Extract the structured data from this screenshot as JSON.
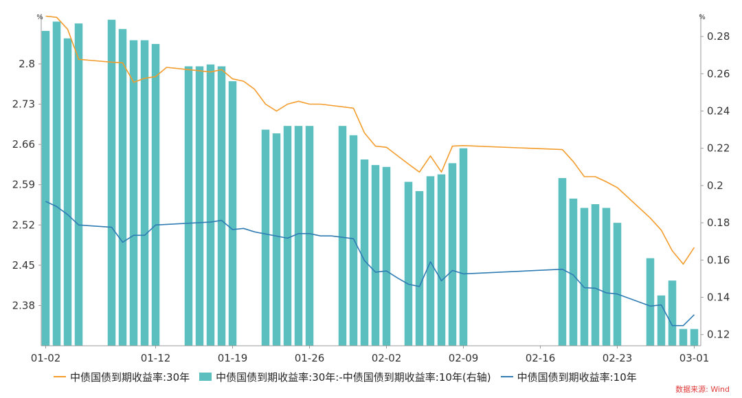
{
  "chart_data": {
    "type": "bar+line",
    "left_unit": "%",
    "right_unit": "%",
    "y_left_ticks": [
      "2.8",
      "2.73",
      "2.66",
      "2.59",
      "2.52",
      "2.45",
      "2.38"
    ],
    "y_left_values": [
      2.8,
      2.73,
      2.66,
      2.59,
      2.52,
      2.45,
      2.38
    ],
    "ylim_left": [
      2.31,
      2.88
    ],
    "y_right_ticks": [
      "0.28",
      "0.26",
      "0.24",
      "0.22",
      "0.2",
      "0.18",
      "0.16",
      "0.14",
      "0.12"
    ],
    "y_right_values": [
      0.28,
      0.26,
      0.24,
      0.22,
      0.2,
      0.18,
      0.16,
      0.14,
      0.12
    ],
    "ylim_right": [
      0.114,
      0.29
    ],
    "x_ticks": [
      {
        "label": "01-02",
        "i": 0
      },
      {
        "label": "01-12",
        "i": 10
      },
      {
        "label": "01-19",
        "i": 17
      },
      {
        "label": "01-26",
        "i": 24
      },
      {
        "label": "02-02",
        "i": 31
      },
      {
        "label": "02-09",
        "i": 38
      },
      {
        "label": "02-16",
        "i": 45
      },
      {
        "label": "02-23",
        "i": 52
      },
      {
        "label": "03-01",
        "i": 59
      }
    ],
    "n_slots": 60,
    "series": [
      {
        "name": "中债国债到期收益率:30年",
        "kind": "line",
        "axis": "left",
        "color": "#f39c2b",
        "points": [
          [
            0,
            2.883
          ],
          [
            1,
            2.881
          ],
          [
            2,
            2.86
          ],
          [
            3,
            2.808
          ],
          [
            6,
            2.803
          ],
          [
            7,
            2.802
          ],
          [
            8,
            2.768
          ],
          [
            9,
            2.775
          ],
          [
            10,
            2.778
          ],
          [
            11,
            2.794
          ],
          [
            15,
            2.786
          ],
          [
            16,
            2.79
          ],
          [
            17,
            2.774
          ],
          [
            18,
            2.77
          ],
          [
            19,
            2.756
          ],
          [
            20,
            2.73
          ],
          [
            21,
            2.718
          ],
          [
            22,
            2.73
          ],
          [
            23,
            2.735
          ],
          [
            24,
            2.73
          ],
          [
            25,
            2.73
          ],
          [
            28,
            2.723
          ],
          [
            29,
            2.68
          ],
          [
            30,
            2.657
          ],
          [
            31,
            2.655
          ],
          [
            33,
            2.626
          ],
          [
            34,
            2.612
          ],
          [
            35,
            2.64
          ],
          [
            36,
            2.612
          ],
          [
            37,
            2.657
          ],
          [
            38,
            2.658
          ],
          [
            47,
            2.651
          ],
          [
            48,
            2.63
          ],
          [
            49,
            2.604
          ],
          [
            50,
            2.604
          ],
          [
            51,
            2.595
          ],
          [
            52,
            2.585
          ],
          [
            55,
            2.532
          ],
          [
            56,
            2.511
          ],
          [
            57,
            2.475
          ],
          [
            58,
            2.452
          ],
          [
            59,
            2.481
          ]
        ]
      },
      {
        "name": "中债国债到期收益率:30年:-中债国债到期收益率:10年(右轴)",
        "kind": "bar",
        "axis": "right",
        "color": "#5bbfbf",
        "points": [
          [
            0,
            0.283
          ],
          [
            1,
            0.288
          ],
          [
            2,
            0.279
          ],
          [
            3,
            0.287
          ],
          [
            6,
            0.289
          ],
          [
            7,
            0.284
          ],
          [
            8,
            0.278
          ],
          [
            9,
            0.278
          ],
          [
            10,
            0.276
          ],
          [
            13,
            0.264
          ],
          [
            14,
            0.264
          ],
          [
            15,
            0.265
          ],
          [
            16,
            0.264
          ],
          [
            17,
            0.256
          ],
          [
            20,
            0.23
          ],
          [
            21,
            0.228
          ],
          [
            22,
            0.232
          ],
          [
            23,
            0.232
          ],
          [
            24,
            0.232
          ],
          [
            27,
            0.232
          ],
          [
            28,
            0.227
          ],
          [
            29,
            0.214
          ],
          [
            30,
            0.211
          ],
          [
            31,
            0.21
          ],
          [
            33,
            0.202
          ],
          [
            34,
            0.197
          ],
          [
            35,
            0.205
          ],
          [
            36,
            0.206
          ],
          [
            37,
            0.212
          ],
          [
            38,
            0.22
          ],
          [
            47,
            0.204
          ],
          [
            48,
            0.193
          ],
          [
            49,
            0.188
          ],
          [
            50,
            0.19
          ],
          [
            51,
            0.188
          ],
          [
            52,
            0.18
          ],
          [
            55,
            0.161
          ],
          [
            56,
            0.141
          ],
          [
            57,
            0.149
          ],
          [
            58,
            0.123
          ],
          [
            59,
            0.123
          ]
        ]
      },
      {
        "name": "中债国债到期收益率:10年",
        "kind": "line",
        "axis": "left",
        "color": "#2f7bb3",
        "points": [
          [
            0,
            2.561
          ],
          [
            1,
            2.552
          ],
          [
            2,
            2.538
          ],
          [
            3,
            2.52
          ],
          [
            6,
            2.516
          ],
          [
            7,
            2.49
          ],
          [
            8,
            2.502
          ],
          [
            9,
            2.502
          ],
          [
            10,
            2.52
          ],
          [
            15,
            2.525
          ],
          [
            16,
            2.528
          ],
          [
            17,
            2.512
          ],
          [
            18,
            2.514
          ],
          [
            19,
            2.508
          ],
          [
            22,
            2.497
          ],
          [
            23,
            2.505
          ],
          [
            24,
            2.505
          ],
          [
            25,
            2.501
          ],
          [
            26,
            2.501
          ],
          [
            28,
            2.496
          ],
          [
            29,
            2.458
          ],
          [
            30,
            2.438
          ],
          [
            31,
            2.44
          ],
          [
            32,
            2.428
          ],
          [
            33,
            2.417
          ],
          [
            34,
            2.413
          ],
          [
            35,
            2.456
          ],
          [
            36,
            2.423
          ],
          [
            37,
            2.441
          ],
          [
            38,
            2.435
          ],
          [
            47,
            2.443
          ],
          [
            48,
            2.433
          ],
          [
            49,
            2.411
          ],
          [
            50,
            2.41
          ],
          [
            51,
            2.402
          ],
          [
            52,
            2.4
          ],
          [
            55,
            2.379
          ],
          [
            56,
            2.381
          ],
          [
            57,
            2.345
          ],
          [
            58,
            2.345
          ],
          [
            59,
            2.364
          ]
        ]
      }
    ],
    "legend": [
      {
        "label": "中债国债到期收益率:30年",
        "kind": "line",
        "color": "#f39c2b"
      },
      {
        "label": "中债国债到期收益率:30年:-中债国债到期收益率:10年(右轴)",
        "kind": "bar",
        "color": "#5bbfbf"
      },
      {
        "label": "中债国债到期收益率:10年",
        "kind": "line",
        "color": "#2f7bb3"
      }
    ],
    "legend_position": "bottom",
    "grid": false
  },
  "source": "数据来源: Wind"
}
